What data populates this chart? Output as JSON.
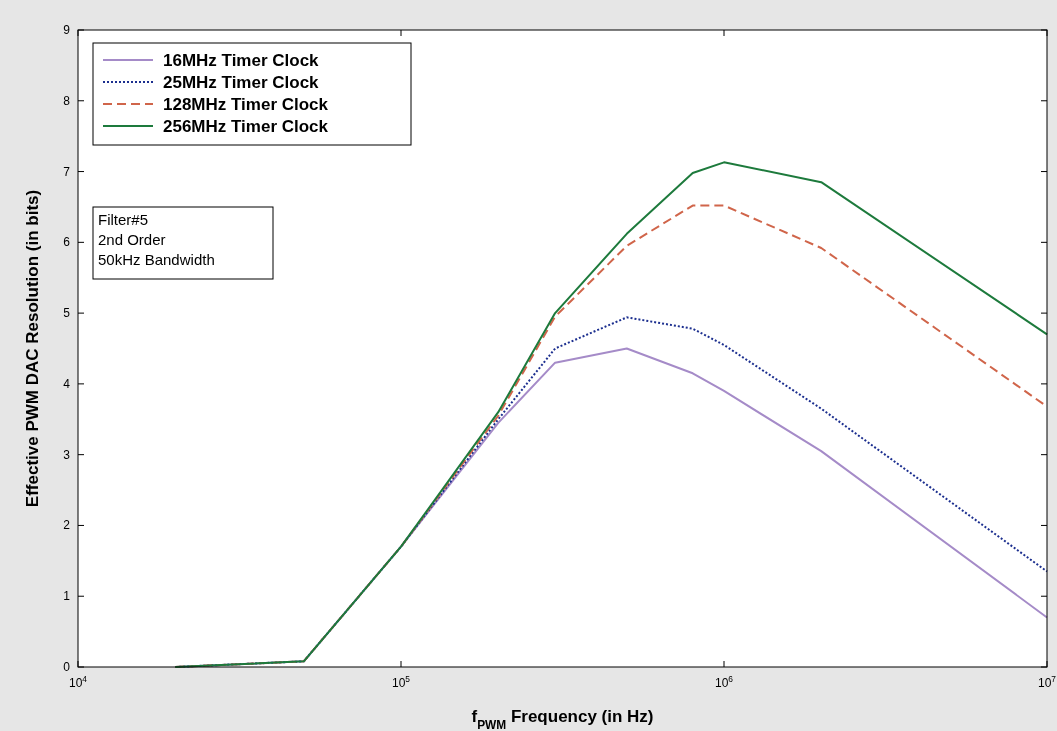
{
  "chart_data": {
    "type": "line",
    "xlabel": "f$_{PWM}$ Frequency (in Hz)",
    "ylabel": "Effective PWM DAC Resolution (in bits)",
    "log": "x",
    "x": [
      20000,
      50000,
      100000,
      200000,
      300000,
      500000,
      800000,
      1000000,
      2000000,
      10000000
    ],
    "series": [
      {
        "name": "16MHz Timer Clock",
        "color": "#a58bc8",
        "line_style": "solid",
        "values": [
          0,
          0.08,
          1.7,
          3.45,
          4.3,
          4.5,
          4.15,
          3.9,
          3.05,
          0.7
        ]
      },
      {
        "name": "25MHz Timer Clock",
        "color": "#1c2f8f",
        "line_style": "dotted",
        "values": [
          0,
          0.08,
          1.7,
          3.5,
          4.5,
          4.94,
          4.78,
          4.55,
          3.65,
          1.35
        ]
      },
      {
        "name": "128MHz Timer Clock",
        "color": "#d0654a",
        "line_style": "dashed",
        "values": [
          0,
          0.08,
          1.7,
          3.55,
          4.95,
          5.95,
          6.52,
          6.52,
          5.92,
          3.68
        ]
      },
      {
        "name": "256MHz Timer Clock",
        "color": "#1d7a3c",
        "line_style": "solid",
        "values": [
          0,
          0.08,
          1.7,
          3.6,
          5.0,
          6.12,
          6.98,
          7.13,
          6.85,
          4.7
        ]
      }
    ],
    "xlim": [
      10000,
      10000000
    ],
    "ylim": [
      0,
      9
    ],
    "xticks": [
      {
        "value": 10000,
        "label": "10$^{4}$"
      },
      {
        "value": 100000,
        "label": "10$^{5}$"
      },
      {
        "value": 1000000,
        "label": "10$^{6}$"
      },
      {
        "value": 10000000,
        "label": "10$^{7}$"
      }
    ],
    "yticks": [
      0,
      1,
      2,
      3,
      4,
      5,
      6,
      7,
      8,
      9
    ],
    "grid": false,
    "legend": "top left",
    "marker": "none",
    "annotations": [
      "Filter#5",
      "2nd Order",
      "50kHz Bandwidth"
    ]
  }
}
